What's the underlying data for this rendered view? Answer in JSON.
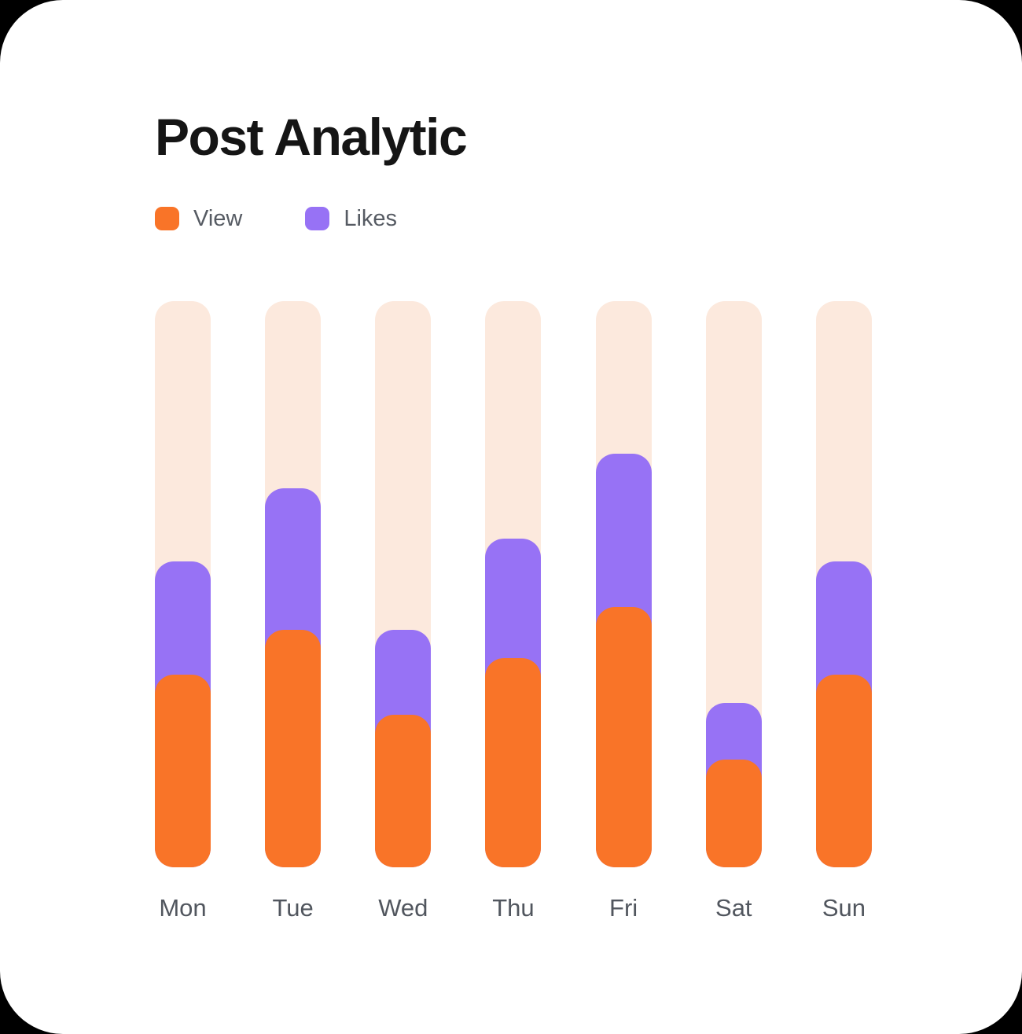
{
  "page": {
    "background_color": "#000000",
    "card_color": "#FFFFFF"
  },
  "header": {
    "title": "Post Analytic"
  },
  "legend": [
    {
      "label": "View",
      "color": "#F97428"
    },
    {
      "label": "Likes",
      "color": "#9772F5"
    }
  ],
  "chart_data": {
    "type": "bar",
    "stacked": true,
    "title": "Post Analytic",
    "xlabel": "",
    "ylabel": "",
    "categories": [
      "Mon",
      "Tue",
      "Wed",
      "Thu",
      "Fri",
      "Sat",
      "Sun"
    ],
    "series": [
      {
        "name": "View",
        "color": "#F97428",
        "values": [
          34,
          42,
          27,
          37,
          46,
          19,
          34
        ]
      },
      {
        "name": "Likes",
        "color": "#9772F5",
        "values": [
          20,
          25,
          15,
          21,
          27,
          10,
          20
        ]
      }
    ],
    "ylim": [
      0,
      100
    ],
    "grid": false,
    "legend_position": "top-left",
    "track_color": "#FCE9DD",
    "axis_label_color": "#51565E"
  }
}
